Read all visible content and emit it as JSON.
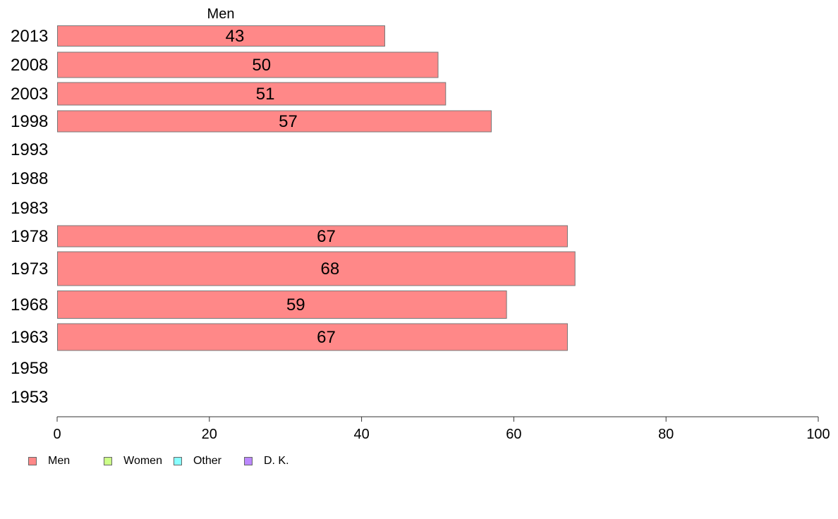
{
  "chart_data": {
    "type": "bar",
    "orientation": "horizontal",
    "title": "Men",
    "categories": [
      "2013",
      "2008",
      "2003",
      "1998",
      "1993",
      "1988",
      "1983",
      "1978",
      "1973",
      "1968",
      "1963",
      "1958",
      "1953"
    ],
    "series": [
      {
        "name": "Men",
        "color": "#ff8888",
        "values": [
          43,
          50,
          51,
          57,
          null,
          null,
          null,
          67,
          68,
          59,
          67,
          null,
          null
        ]
      }
    ],
    "data_labels": [
      "43",
      "50",
      "51",
      "57",
      "",
      "",
      "",
      "67",
      "68",
      "59",
      "67",
      "",
      ""
    ],
    "xlim": [
      0,
      100
    ],
    "xticks": [
      0,
      20,
      40,
      60,
      80,
      100
    ],
    "grid": false,
    "legend_position": "bottom-left"
  },
  "legend": [
    {
      "label": "Men",
      "color": "#ff8888"
    },
    {
      "label": "Women",
      "color": "#ccff88"
    },
    {
      "label": "Other",
      "color": "#88ffff"
    },
    {
      "label": "D. K.",
      "color": "#bb88ff"
    }
  ]
}
